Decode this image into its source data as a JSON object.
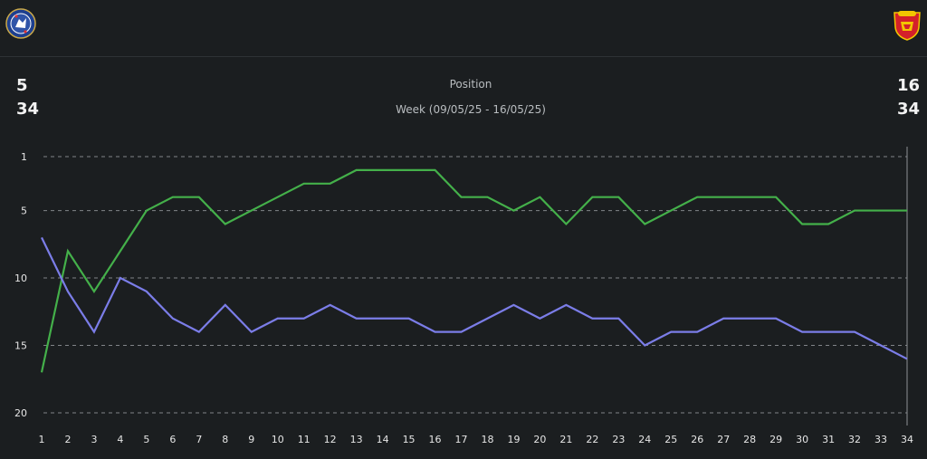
{
  "teams": {
    "home": {
      "name": "Chelsea",
      "crest_icon": "chelsea-crest-icon",
      "color": "#2f54a8"
    },
    "away": {
      "name": "Manchester United",
      "crest_icon": "manchester-united-crest-icon",
      "color": "#d4202a"
    }
  },
  "stats": {
    "home": {
      "position": "5",
      "week": "34"
    },
    "away": {
      "position": "16",
      "week": "34"
    }
  },
  "colors": {
    "background": "#1b1e20",
    "home_line": "#44b04a",
    "away_line": "#7b7de8",
    "grid": "#9a9ea2"
  },
  "chart_data": {
    "type": "line",
    "title": "Position",
    "subtitle": "Week (09/05/25 - 16/05/25)",
    "xlabel": "",
    "ylabel": "",
    "x": [
      1,
      2,
      3,
      4,
      5,
      6,
      7,
      8,
      9,
      10,
      11,
      12,
      13,
      14,
      15,
      16,
      17,
      18,
      19,
      20,
      21,
      22,
      23,
      24,
      25,
      26,
      27,
      28,
      29,
      30,
      31,
      32,
      33,
      34
    ],
    "y_ticks": [
      1,
      5,
      10,
      15,
      20
    ],
    "ylim": [
      20,
      1
    ],
    "y_inverted": true,
    "grid": "horizontal dashed",
    "series": [
      {
        "team": "home",
        "color": "#44b04a",
        "values": [
          17,
          8,
          11,
          8,
          5,
          4,
          4,
          6,
          5,
          4,
          3,
          3,
          2,
          2,
          2,
          2,
          4,
          4,
          5,
          4,
          6,
          4,
          4,
          6,
          5,
          4,
          4,
          4,
          4,
          6,
          6,
          5,
          5,
          5
        ]
      },
      {
        "team": "away",
        "color": "#7b7de8",
        "values": [
          7,
          11,
          14,
          10,
          11,
          13,
          14,
          12,
          14,
          13,
          13,
          12,
          13,
          13,
          13,
          14,
          14,
          13,
          12,
          13,
          12,
          13,
          13,
          15,
          14,
          14,
          13,
          13,
          13,
          14,
          14,
          14,
          15,
          16
        ]
      }
    ]
  }
}
